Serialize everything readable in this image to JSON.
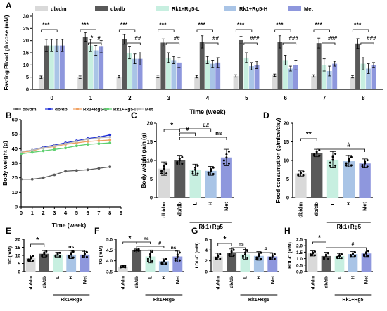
{
  "colors": {
    "dbdm": "#d9d9d9",
    "dbdb": "#595959",
    "rk1_l": "#c7efe0",
    "rk1_h": "#a9c4e6",
    "met": "#8e97dd",
    "b_dbdm": "#5a5a5a",
    "b_dbdb": "#1f2fd6",
    "b_rk1_l": "#f0a060",
    "b_rk1_h": "#5fd070",
    "b_met": "#bcbcbc"
  },
  "chart_data": [
    {
      "panel": "A",
      "type": "bar",
      "legend": [
        "db/dm",
        "db/db",
        "Rk1+Rg5-L",
        "Rk1+Rg5-H",
        "Met"
      ],
      "categories": [
        "0",
        "1",
        "2",
        "3",
        "4",
        "5",
        "6",
        "7",
        "8"
      ],
      "xlabel": "Time (week)",
      "ylabel": "Fasting Blood glucose (mM)",
      "ylim": [
        0,
        30
      ],
      "yticks": [
        "0",
        "5",
        "10",
        "15",
        "20",
        "25",
        "30"
      ],
      "series": [
        {
          "name": "db/dm",
          "values": [
            5,
            5,
            5.2,
            5.3,
            5.2,
            5.5,
            5.8,
            5.5,
            5.2
          ]
        },
        {
          "name": "db/db",
          "values": [
            18,
            21.5,
            20.5,
            19.2,
            19.5,
            20.2,
            19.5,
            19,
            18.8
          ]
        },
        {
          "name": "Rk1+Rg5-L",
          "values": [
            18,
            18,
            15,
            13,
            12,
            13,
            12,
            10,
            10.5
          ]
        },
        {
          "name": "Rk1+Rg5-H",
          "values": [
            18,
            16,
            12.5,
            12,
            10.5,
            9.5,
            8.5,
            7.5,
            8.5
          ]
        },
        {
          "name": "Met",
          "values": [
            18,
            17.5,
            12.5,
            11,
            11,
            10,
            10,
            10.5,
            10
          ]
        }
      ],
      "errors": [
        [
          0.5,
          0.5,
          0.5,
          0.5,
          0.5,
          0.5,
          0.5,
          0.5,
          0.5
        ],
        [
          2.5,
          1.8,
          2,
          1.5,
          2.5,
          1.5,
          2.5,
          2,
          2
        ],
        [
          2.5,
          2.5,
          2.5,
          2,
          1.5,
          2,
          2,
          2.5,
          2.5
        ],
        [
          2.5,
          2,
          2,
          1.5,
          1.5,
          1.5,
          1,
          2,
          2
        ],
        [
          2.5,
          2.5,
          2.5,
          2,
          2,
          1.5,
          2,
          1,
          1
        ]
      ],
      "annotations": [
        "***",
        "*",
        "#",
        "##",
        "###"
      ]
    },
    {
      "panel": "B",
      "type": "line",
      "legend": [
        "db/dm",
        "db/db",
        "Rk1+Rg5-L",
        "Rk1+Rg5-H",
        "Met"
      ],
      "x": [
        0,
        1,
        2,
        3,
        4,
        5,
        6,
        7,
        8
      ],
      "xlabel": "Time (week)",
      "ylabel": "Body weight (g)",
      "xlim": [
        0,
        9
      ],
      "xticks": [
        "0",
        "1",
        "2",
        "3",
        "4",
        "5",
        "6",
        "7",
        "8",
        "9"
      ],
      "ylim": [
        0,
        60
      ],
      "yticks": [
        "0",
        "10",
        "20",
        "30",
        "40",
        "50",
        "60"
      ],
      "series": [
        {
          "name": "db/dm",
          "values": [
            19,
            19,
            20,
            22,
            24.5,
            25,
            25.5,
            26.5,
            27.5
          ]
        },
        {
          "name": "db/db",
          "values": [
            38,
            39,
            41,
            42.5,
            44,
            45.5,
            47,
            48,
            49.5
          ]
        },
        {
          "name": "Rk1+Rg5-L",
          "values": [
            37.5,
            38.5,
            40.5,
            41.5,
            43,
            44,
            45,
            45.5,
            46
          ]
        },
        {
          "name": "Rk1+Rg5-H",
          "values": [
            36.5,
            37.5,
            38.5,
            39.5,
            40.5,
            42,
            43,
            43.5,
            44
          ]
        },
        {
          "name": "Met",
          "values": [
            38,
            39,
            40.5,
            42,
            43.5,
            45,
            46.5,
            47.5,
            48
          ]
        }
      ]
    },
    {
      "panel": "C",
      "type": "bar",
      "categories": [
        "db/dm",
        "db/db",
        "L",
        "H",
        "Met"
      ],
      "group_label": "Rk1+Rg5",
      "ylabel": "Body weight gain (g)",
      "ylim": [
        0,
        20
      ],
      "yticks": [
        "0",
        "5",
        "10",
        "15",
        "20"
      ],
      "values": [
        7.8,
        10,
        7.5,
        7.2,
        10.8
      ],
      "errors": [
        1.8,
        1.2,
        1.5,
        1.2,
        2.2
      ],
      "annotations": [
        "*",
        "#",
        "##",
        "#",
        "ns"
      ]
    },
    {
      "panel": "D",
      "type": "bar",
      "categories": [
        "db/dm",
        "db/db",
        "L",
        "H",
        "Met"
      ],
      "group_label": "Rk1+Rg5",
      "ylabel": "Food consumption (g/mice/day)",
      "ylim": [
        0,
        20
      ],
      "yticks": [
        "0",
        "5",
        "10",
        "15",
        "20"
      ],
      "values": [
        6.5,
        12,
        10.2,
        9.8,
        9.2
      ],
      "errors": [
        0.7,
        1,
        2.2,
        1.5,
        1.2
      ],
      "annotations": [
        "**",
        "#"
      ]
    },
    {
      "panel": "E",
      "type": "bar",
      "categories": [
        "db/dm",
        "db/db",
        "L",
        "H",
        "Met"
      ],
      "group_label": "Rk1+Rg5",
      "ylabel": "TC (mM)",
      "ylim": [
        0,
        20
      ],
      "yticks": [
        "0",
        "5",
        "10",
        "15",
        "20"
      ],
      "values": [
        8.2,
        11,
        10.5,
        10.5,
        10.5
      ],
      "errors": [
        2,
        2,
        1.5,
        2.5,
        2
      ],
      "annotations": [
        "*",
        "ns"
      ]
    },
    {
      "panel": "F",
      "type": "bar",
      "categories": [
        "db/dm",
        "db/db",
        "L",
        "H",
        "Met"
      ],
      "group_label": "Rk1+Rg5",
      "ylabel": "TG (mM)",
      "ylim": [
        3.5,
        5.0
      ],
      "yticks": [
        "3.5",
        "4.0",
        "4.5",
        "5.0"
      ],
      "values": [
        3.73,
        4.5,
        4.2,
        3.98,
        4.2
      ],
      "errors": [
        0.05,
        0.05,
        0.3,
        0.15,
        0.25
      ],
      "annotations": [
        "*",
        "ns",
        "ns",
        "#",
        "ns"
      ]
    },
    {
      "panel": "G",
      "type": "bar",
      "categories": [
        "db/dm",
        "db/db",
        "L",
        "H",
        "Met"
      ],
      "group_label": "Rk1+Rg5",
      "ylabel": "LDL-C (mM)",
      "ylim": [
        0,
        6
      ],
      "yticks": [
        "0",
        "2",
        "4",
        "6"
      ],
      "values": [
        2.8,
        3.5,
        3.2,
        2.9,
        2.8
      ],
      "errors": [
        0.6,
        0.7,
        0.9,
        0.8,
        0.6
      ],
      "annotations": [
        "*",
        "ns",
        "#"
      ]
    },
    {
      "panel": "H",
      "type": "bar",
      "categories": [
        "db/dm",
        "db/db",
        "L",
        "H",
        "Met"
      ],
      "group_label": "Rk1+Rg5",
      "ylabel": "HDL-C (mM)",
      "ylim": [
        0,
        2.5
      ],
      "yticks": [
        "0.0",
        "0.5",
        "1.0",
        "1.5",
        "2.0",
        "2.5"
      ],
      "values": [
        1.4,
        1.2,
        1.2,
        1.35,
        1.4
      ],
      "errors": [
        0.2,
        0.3,
        0.2,
        0.2,
        0.25
      ],
      "annotations": [
        "*",
        "#"
      ]
    }
  ]
}
